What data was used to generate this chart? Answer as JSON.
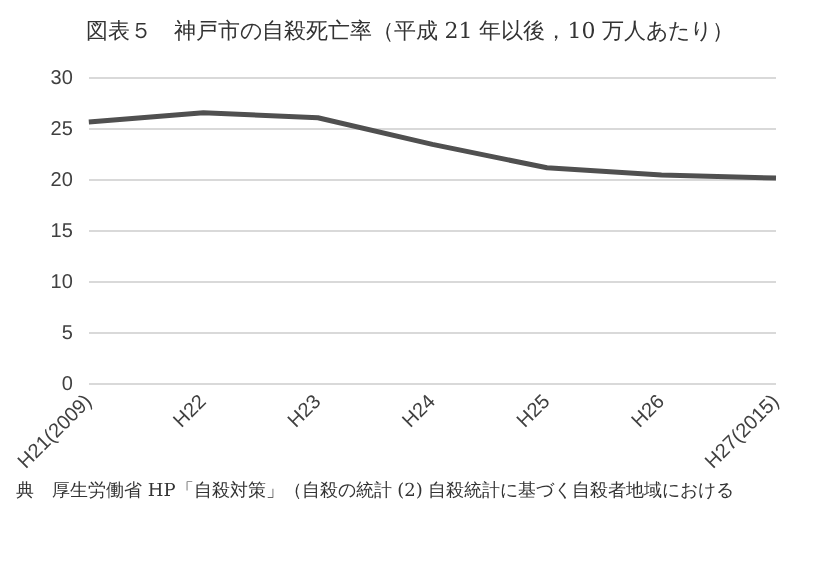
{
  "chart_data": {
    "type": "line",
    "title": "図表５　神戸市の自殺死亡率（平成 21 年以後，10 万人あたり）",
    "categories": [
      "H21(2009)",
      "H22",
      "H23",
      "H24",
      "H25",
      "H26",
      "H27(2015)"
    ],
    "series": [
      {
        "color": "#505050",
        "values": [
          25.7,
          26.6,
          26.1,
          23.5,
          21.2,
          20.5,
          20.2
        ]
      }
    ],
    "ylim": [
      0,
      30
    ],
    "yticks": [
      0,
      5,
      10,
      15,
      20,
      25,
      30
    ],
    "grid": "y",
    "legend": false,
    "marker": "none",
    "line_style": "solid",
    "annotations": [
      "典　厚生労働省 HP「自殺対策」（自殺の統計 (2) 自殺統計に基づく自殺者地域における"
    ]
  }
}
